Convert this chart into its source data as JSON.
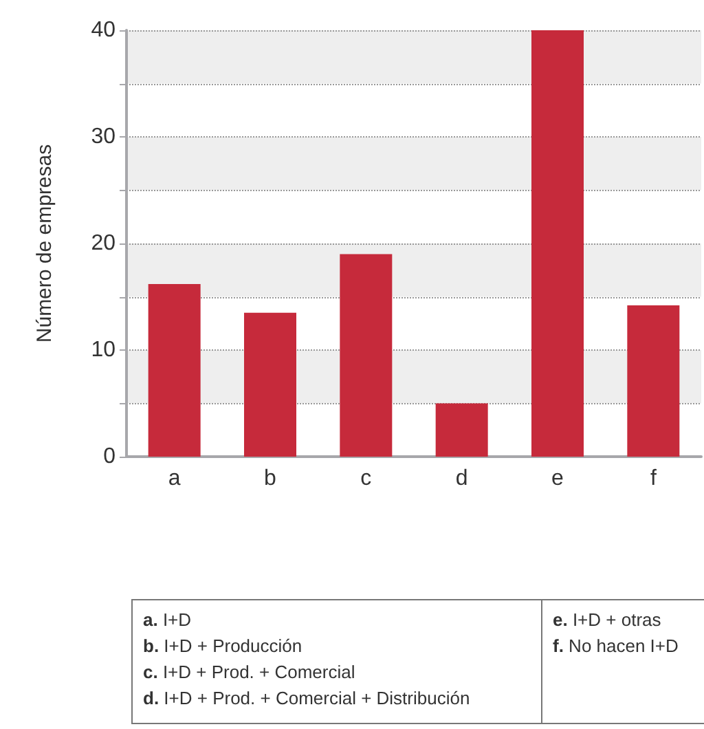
{
  "chart_data": {
    "type": "bar",
    "ylabel": "Número de empresas",
    "categories": [
      "a",
      "b",
      "c",
      "d",
      "e",
      "f"
    ],
    "values": [
      16.2,
      13.5,
      19,
      5,
      40,
      14.2
    ],
    "color": "#c62a3b",
    "ylim": [
      0,
      40
    ],
    "yticks": [
      0,
      {
        "value": 5,
        "label": null
      },
      10,
      {
        "value": 15,
        "label": null
      },
      20,
      {
        "value": 25,
        "label": null
      },
      30,
      {
        "value": 35,
        "label": null
      },
      40
    ],
    "grid": "y",
    "annotations": [
      "a. I+D",
      "b. I+D + Producción",
      "c. I+D + Prod. + Comercial",
      "d. I+D + Prod. + Comercial + Distribución",
      "e. I+D + otras",
      "f. No hacen I+D"
    ]
  }
}
